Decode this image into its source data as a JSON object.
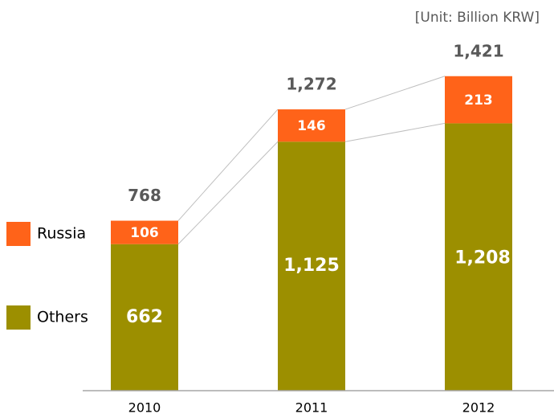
{
  "chart_data": {
    "type": "stacked_bar",
    "annotation": "[Unit: Billion KRW]",
    "categories": [
      "2010",
      "2011",
      "2012"
    ],
    "series": [
      {
        "name": "Others",
        "color": "#9c8f00",
        "values": [
          662,
          1125,
          1208
        ],
        "value_labels": [
          "662",
          "1,125",
          "1,208"
        ]
      },
      {
        "name": "Russia",
        "color": "#ff6319",
        "values": [
          106,
          146,
          213
        ],
        "value_labels": [
          "106",
          "146",
          "213"
        ]
      }
    ],
    "totals": {
      "values": [
        768,
        1272,
        1421
      ],
      "value_labels": [
        "768",
        "1,272",
        "1,421"
      ]
    },
    "ylim": [
      0,
      1500
    ]
  }
}
